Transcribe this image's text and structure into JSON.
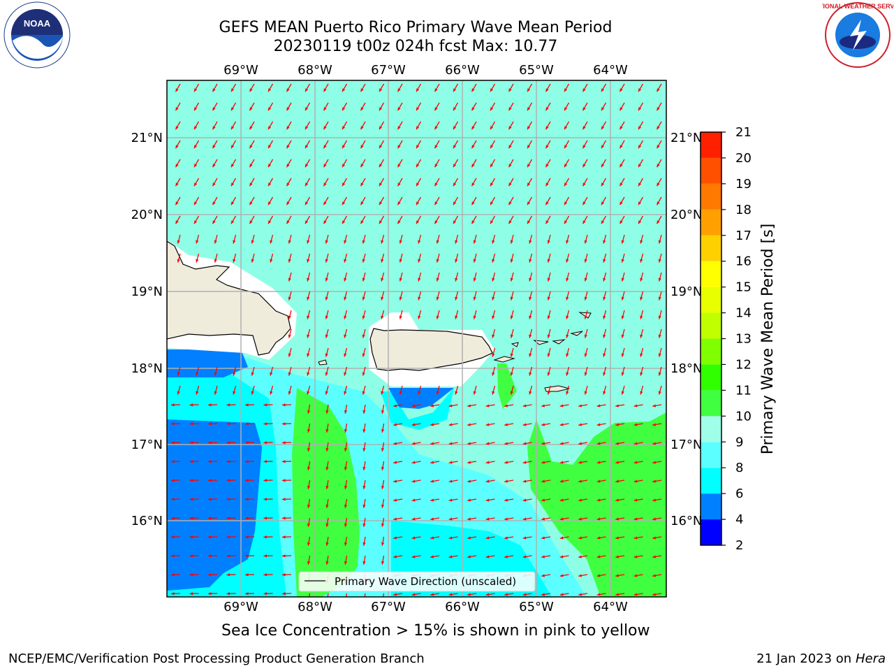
{
  "header": {
    "title_line1": "GEFS MEAN Puerto Rico Primary Wave Mean Period",
    "title_line2": "20230119 t00z 024h fcst   Max: 10.77"
  },
  "map": {
    "lon_labels": [
      "69°W",
      "68°W",
      "67°W",
      "66°W",
      "65°W",
      "64°W"
    ],
    "lat_labels": [
      "21°N",
      "20°N",
      "19°N",
      "18°N",
      "17°N",
      "16°N"
    ],
    "legend_label": "Primary Wave Direction (unscaled)",
    "arrow_color": "#ff0000",
    "ocean_color": "#8effe6",
    "land_color": "#efecdc"
  },
  "colorbar": {
    "label": "Primary Wave Mean Period [s]",
    "ticks": [
      "2",
      "4",
      "6",
      "8",
      "9",
      "10",
      "11",
      "12",
      "13",
      "14",
      "15",
      "16",
      "17",
      "18",
      "19",
      "20",
      "21"
    ],
    "colors": [
      "#0000ff",
      "#0080ff",
      "#00ffff",
      "#5cffff",
      "#a0ffe8",
      "#40ff40",
      "#30ff00",
      "#80ff00",
      "#c0ff00",
      "#e8ff00",
      "#ffff00",
      "#ffd000",
      "#ffa000",
      "#ff7800",
      "#ff5000",
      "#ff2000"
    ]
  },
  "caption": "Sea Ice Concentration > 15% is shown in pink to yellow",
  "footer": {
    "left": "NCEP/EMC/Verification Post Processing Product Generation Branch",
    "right_date": "21 Jan 2023 on ",
    "right_host": "Hera"
  },
  "logos": {
    "noaa_text": "NOAA",
    "nws_text": "NATIONAL WEATHER SERVICE"
  }
}
